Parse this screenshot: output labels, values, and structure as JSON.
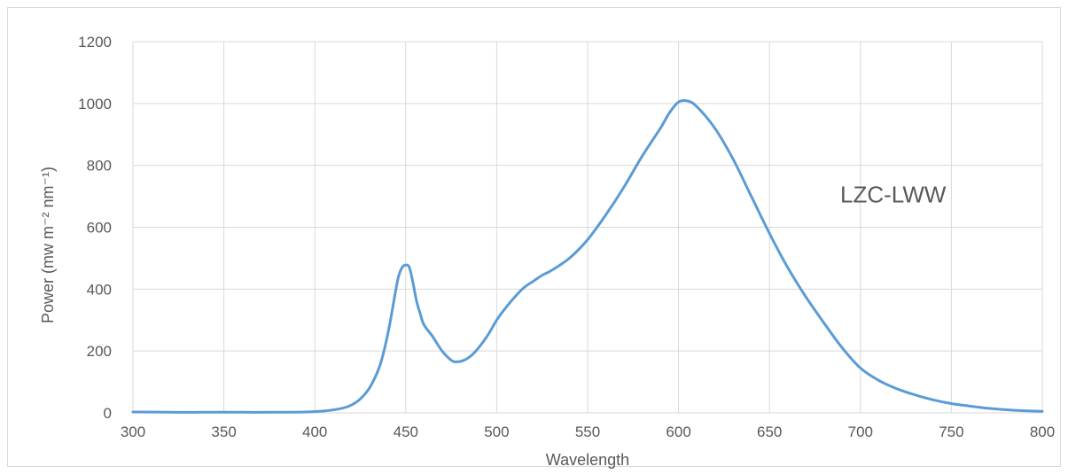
{
  "chart_data": {
    "type": "line",
    "xlabel": "Wavelength",
    "ylabel": "Power (mw m⁻² nm⁻¹)",
    "xlim": [
      300,
      800
    ],
    "ylim": [
      0,
      1200
    ],
    "x_ticks": [
      300,
      350,
      400,
      450,
      500,
      550,
      600,
      650,
      700,
      750,
      800
    ],
    "y_ticks": [
      0,
      200,
      400,
      600,
      800,
      1000,
      1200
    ],
    "grid": true,
    "annotation": "LZC-LWW",
    "series": [
      {
        "color": "#5b9bd5",
        "x": [
          300,
          320,
          340,
          360,
          380,
          395,
          405,
          415,
          420,
          425,
          430,
          435,
          438,
          441,
          444,
          446,
          448,
          450,
          452,
          454,
          456,
          458,
          460,
          465,
          470,
          475,
          478,
          482,
          486,
          490,
          495,
          500,
          505,
          510,
          515,
          520,
          525,
          530,
          540,
          550,
          560,
          570,
          580,
          590,
          595,
          600,
          605,
          610,
          620,
          630,
          640,
          650,
          660,
          670,
          680,
          690,
          700,
          710,
          720,
          730,
          740,
          750,
          760,
          770,
          780,
          790,
          800
        ],
        "y": [
          3,
          2,
          2,
          2,
          2,
          3,
          6,
          15,
          25,
          45,
          80,
          140,
          200,
          280,
          380,
          440,
          470,
          478,
          470,
          420,
          360,
          320,
          285,
          245,
          200,
          170,
          165,
          170,
          185,
          210,
          250,
          300,
          340,
          375,
          405,
          425,
          445,
          460,
          500,
          560,
          640,
          730,
          830,
          920,
          970,
          1005,
          1008,
          990,
          920,
          820,
          700,
          580,
          470,
          375,
          290,
          210,
          145,
          105,
          78,
          58,
          42,
          30,
          22,
          15,
          10,
          7,
          5
        ]
      }
    ]
  }
}
